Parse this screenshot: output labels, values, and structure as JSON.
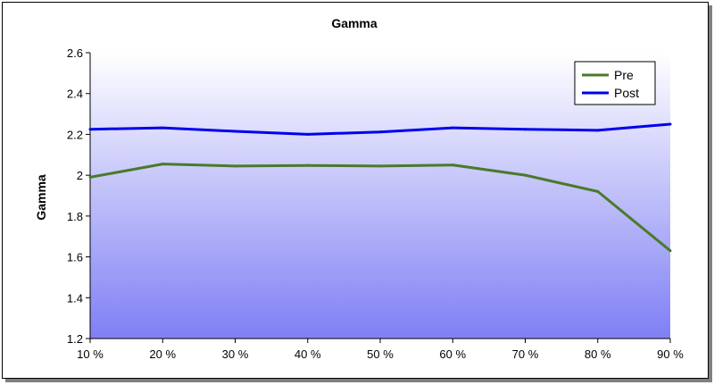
{
  "chart_data": {
    "type": "line",
    "title": "Gamma",
    "xlabel": "",
    "ylabel": "Gamma",
    "categories": [
      "10 %",
      "20 %",
      "30 %",
      "40 %",
      "50 %",
      "60 %",
      "70 %",
      "80 %",
      "90 %"
    ],
    "ylim": [
      1.2,
      2.6
    ],
    "yticks": [
      "1.2",
      "1.4",
      "1.6",
      "1.8",
      "2",
      "2.2",
      "2.4",
      "2.6"
    ],
    "grid": false,
    "legend_position": "top-right",
    "background": "gradient white to blue",
    "series": [
      {
        "name": "Pre",
        "color": "#4a7a2a",
        "values": [
          1.99,
          2.055,
          2.045,
          2.048,
          2.045,
          2.05,
          2.0,
          1.92,
          1.63
        ]
      },
      {
        "name": "Post",
        "color": "#0000ee",
        "values": [
          2.225,
          2.232,
          2.215,
          2.2,
          2.212,
          2.232,
          2.225,
          2.22,
          2.25
        ]
      }
    ]
  }
}
